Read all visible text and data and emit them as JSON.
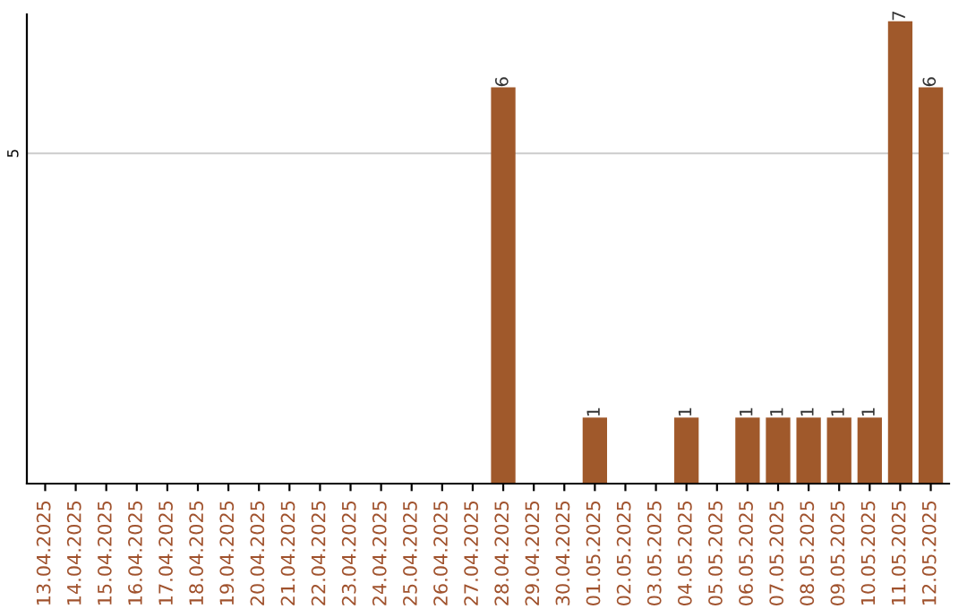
{
  "chart_data": {
    "type": "bar",
    "categories": [
      "13.04.2025",
      "14.04.2025",
      "15.04.2025",
      "16.04.2025",
      "17.04.2025",
      "18.04.2025",
      "19.04.2025",
      "20.04.2025",
      "21.04.2025",
      "22.04.2025",
      "23.04.2025",
      "24.04.2025",
      "25.04.2025",
      "26.04.2025",
      "27.04.2025",
      "28.04.2025",
      "29.04.2025",
      "30.04.2025",
      "01.05.2025",
      "02.05.2025",
      "03.05.2025",
      "04.05.2025",
      "05.05.2025",
      "06.05.2025",
      "07.05.2025",
      "08.05.2025",
      "09.05.2025",
      "10.05.2025",
      "11.05.2025",
      "12.05.2025"
    ],
    "values": [
      null,
      null,
      null,
      null,
      null,
      null,
      null,
      null,
      null,
      null,
      null,
      null,
      null,
      null,
      null,
      6,
      null,
      null,
      1,
      null,
      null,
      1,
      null,
      1,
      1,
      1,
      1,
      1,
      7,
      6
    ],
    "value_labels": [
      null,
      null,
      null,
      null,
      null,
      null,
      null,
      null,
      null,
      null,
      null,
      null,
      null,
      null,
      null,
      "6",
      null,
      null,
      "1",
      null,
      null,
      "1",
      null,
      "1",
      "1",
      "1",
      "1",
      "1",
      "7",
      "6"
    ],
    "color": "#a0592b",
    "ref_lines": [
      {
        "axis": "y",
        "value": 5,
        "label": "5",
        "color": "#cccccc"
      }
    ]
  }
}
